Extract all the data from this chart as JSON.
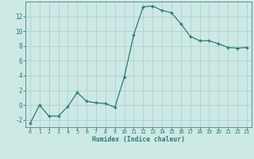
{
  "x": [
    0,
    1,
    2,
    3,
    4,
    5,
    6,
    7,
    8,
    9,
    10,
    11,
    12,
    13,
    14,
    15,
    16,
    17,
    18,
    19,
    20,
    21,
    22,
    23
  ],
  "y": [
    -2.5,
    0.0,
    -1.5,
    -1.5,
    -0.2,
    1.7,
    0.5,
    0.3,
    0.2,
    -0.3,
    3.8,
    9.5,
    13.3,
    13.4,
    12.8,
    12.5,
    11.0,
    9.3,
    8.7,
    8.7,
    8.3,
    7.8,
    7.7,
    7.8
  ],
  "xlabel": "Humidex (Indice chaleur)",
  "ylabel": "",
  "line_color": "#2d7a6d",
  "marker_color": "#2d7a6d",
  "bg_color": "#cde9e5",
  "grid_color": "#aaccca",
  "axis_color": "#5a9090",
  "tick_color": "#2d7a6d",
  "ylim": [
    -3,
    14
  ],
  "xlim": [
    -0.5,
    23.5
  ],
  "yticks": [
    -2,
    0,
    2,
    4,
    6,
    8,
    10,
    12
  ],
  "xticks": [
    0,
    1,
    2,
    3,
    4,
    5,
    6,
    7,
    8,
    9,
    10,
    11,
    12,
    13,
    14,
    15,
    16,
    17,
    18,
    19,
    20,
    21,
    22,
    23
  ]
}
